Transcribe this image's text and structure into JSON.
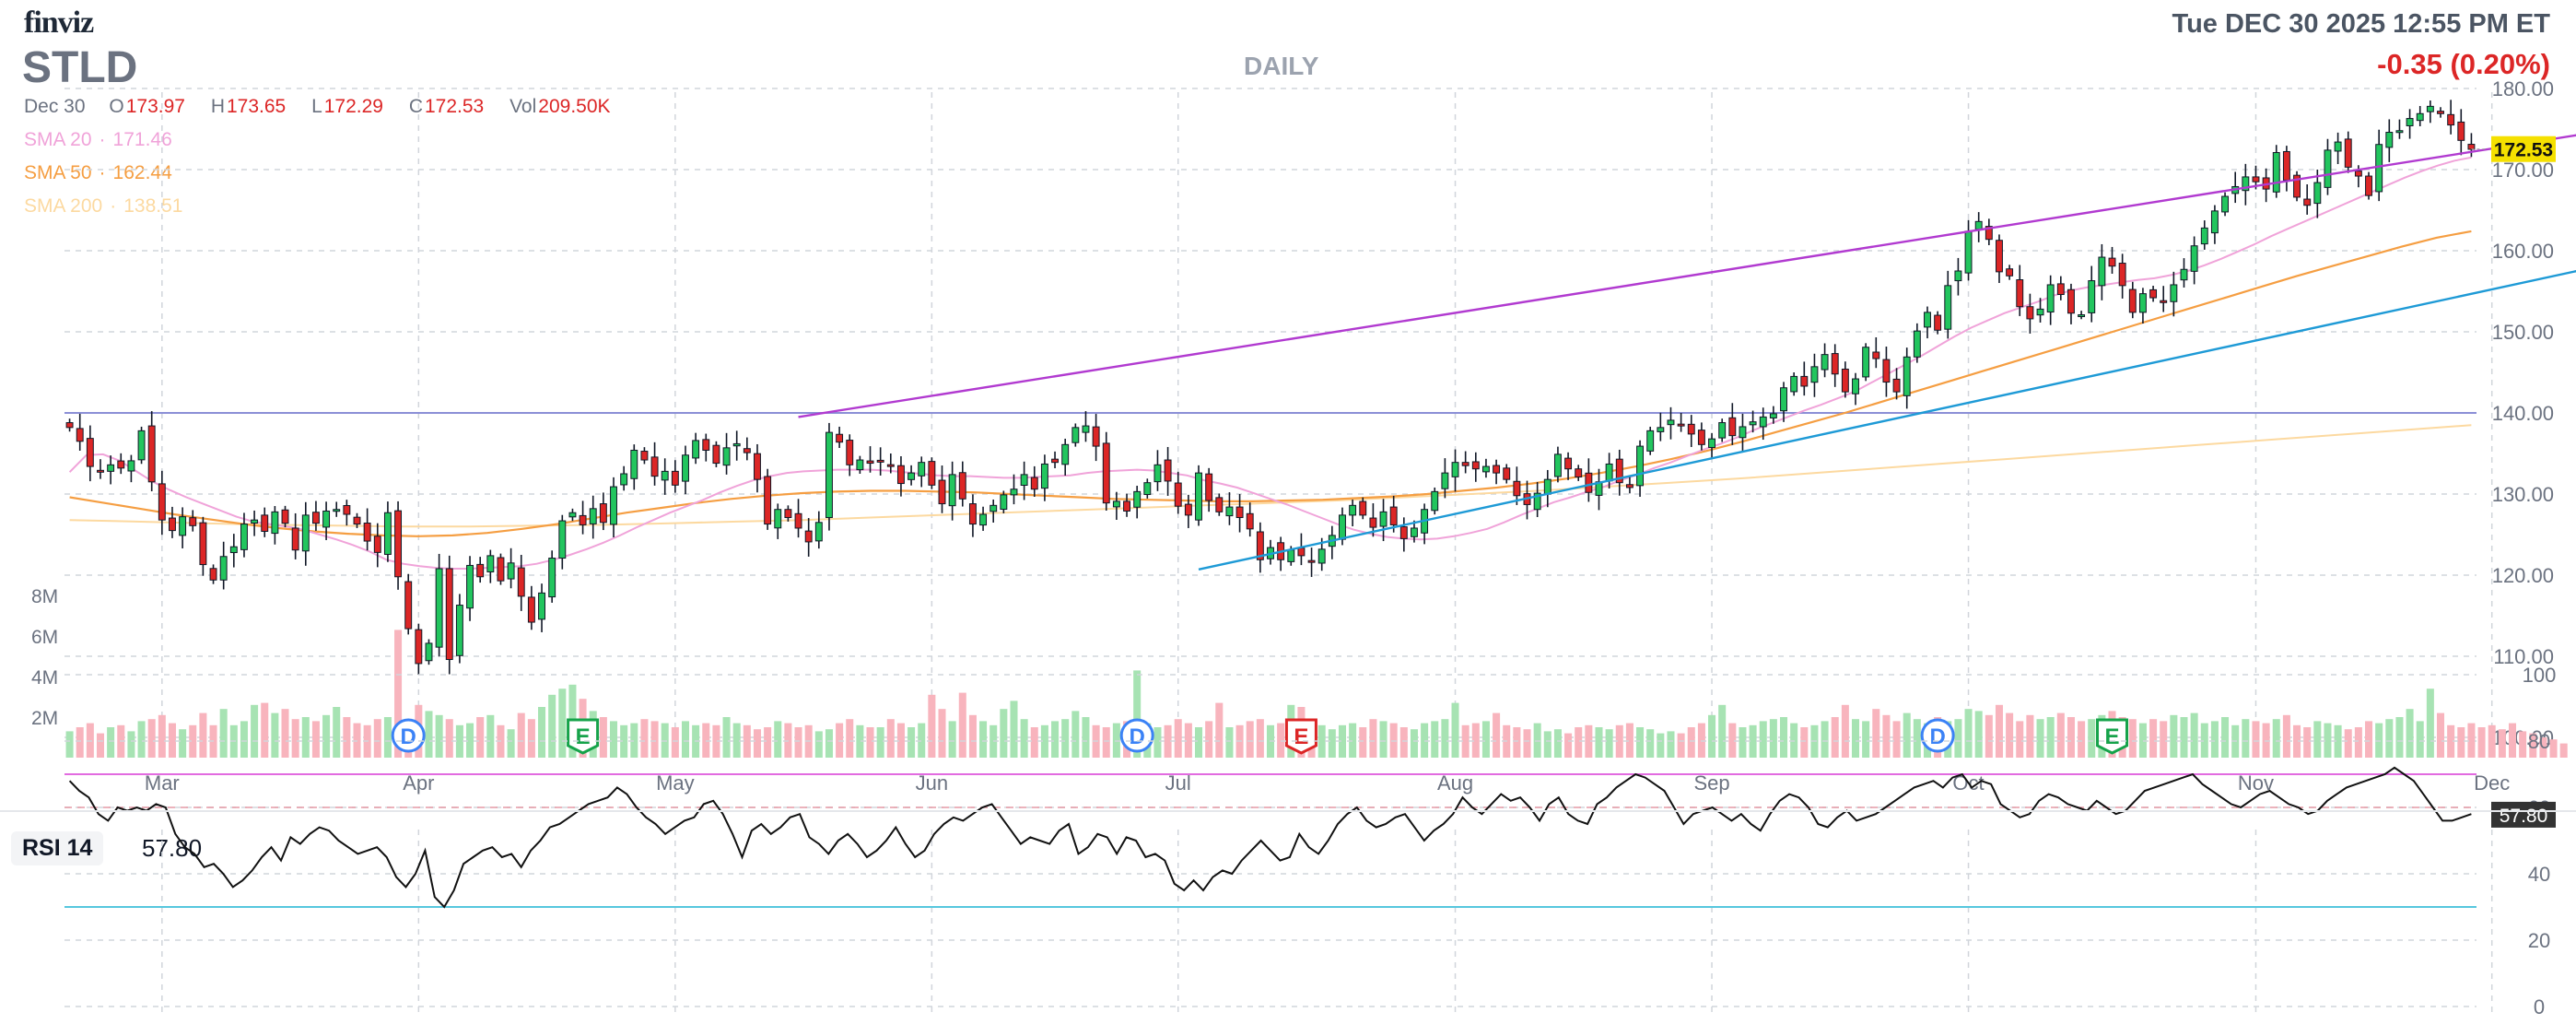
{
  "header": {
    "logo": "finviz",
    "ticker": "STLD",
    "datetime": "Tue DEC 30 2025 12:55 PM ET",
    "change": "-0.35 (0.20%)",
    "period": "DAILY",
    "ohlc": {
      "date": "Dec 30",
      "o_label": "O",
      "o": "173.97",
      "h_label": "H",
      "h": "173.65",
      "l_label": "L",
      "l": "172.29",
      "c_label": "C",
      "c": "172.53",
      "vol_label": "Vol",
      "vol": "209.50K"
    },
    "sma20": {
      "label": "SMA 20",
      "value": "171.46",
      "color": "#f0a3d9"
    },
    "sma50": {
      "label": "SMA 50",
      "value": "162.44",
      "color": "#f59e42"
    },
    "sma200": {
      "label": "SMA 200",
      "value": "138.51",
      "color": "#fcd9a0"
    }
  },
  "colors": {
    "up": "#22c55e",
    "down": "#dc2626",
    "wick": "#111827",
    "vol_up": "#a7e3b3",
    "vol_down": "#f8b4bd",
    "grid": "#d1d5db",
    "resistance": "#8b8fd6",
    "channel_top": "#b13ad0",
    "trend": "#1e9ad6",
    "rsi_line": "#111111",
    "rsi_upper": "#e26be0",
    "rsi_lower": "#57c7de",
    "rsi_mid": "#e59aa5",
    "price_badge": "#f5e000",
    "rsi_badge": "#333333"
  },
  "chart_data": [
    {
      "type": "candlestick",
      "ylim": [
        100,
        180
      ],
      "y_ticks": [
        "100.00",
        "110.00",
        "120.00",
        "130.00",
        "140.00",
        "150.00",
        "160.00",
        "170.00",
        "180.00"
      ],
      "x_ticks": [
        "Mar",
        "Apr",
        "May",
        "Jun",
        "Jul",
        "Aug",
        "Sep",
        "Oct",
        "Nov",
        "Dec"
      ],
      "last_price": "172.53",
      "resistance_level": 140,
      "closes": [
        138.2,
        136.5,
        133.4,
        132.8,
        133.6,
        133.2,
        134.1,
        137.8,
        131.5,
        126.8,
        125.5,
        127.2,
        126.1,
        121.3,
        119.4,
        122.3,
        123.5,
        126.3,
        126.8,
        125.4,
        127.8,
        126.4,
        123.1,
        127.4,
        126.4,
        127.9,
        128.1,
        127.5,
        126.3,
        124.2,
        122.8,
        127.7,
        119.8,
        113.4,
        109.1,
        111.6,
        120.8,
        109.6,
        116.3,
        121.2,
        119.8,
        122.4,
        119.3,
        121.5,
        117.4,
        114.2,
        117.8,
        122.1,
        126.7,
        127.7,
        126.2,
        128.2,
        126.5,
        130.9,
        132.5,
        135.4,
        134.2,
        132.2,
        132.8,
        131.1,
        134.8,
        136.6,
        135.4,
        133.8,
        135.7,
        136.2,
        135.1,
        131.8,
        126.3,
        128.1,
        127.1,
        125.8,
        124.1,
        126.5,
        137.6,
        136.4,
        133.6,
        134.2,
        133.8,
        134.1,
        133.5,
        131.3,
        132.6,
        133.9,
        131.1,
        128.8,
        132.4,
        129.4,
        126.3,
        127.5,
        128.6,
        129.9,
        130.6,
        132.4,
        130.6,
        133.7,
        133.9,
        136.1,
        138.2,
        138.4,
        135.9,
        128.9,
        129.1,
        127.9,
        130.3,
        131.4,
        133.6,
        131.6,
        128.5,
        127.4,
        132.6,
        129.2,
        127.8,
        128.4,
        127.1,
        125.7,
        121.9,
        123.4,
        121.9,
        123.1,
        122.4,
        121.6,
        123.2,
        124.9,
        127.4,
        128.6,
        127.4,
        125.9,
        127.8,
        126.2,
        124.5,
        125.8,
        128.1,
        130.3,
        132.6,
        133.9,
        133.5,
        133.1,
        133.4,
        132.6,
        131.8,
        129.8,
        128.7,
        130.1,
        131.8,
        134.9,
        133.1,
        132.1,
        130.2,
        131.5,
        133.7,
        131.4,
        130.8,
        135.9,
        137.8,
        138.2,
        139.1,
        138.6,
        137.4,
        136.1,
        136.8,
        138.8,
        137.2,
        138.3,
        138.9,
        139.5,
        139.9,
        143.1,
        144.5,
        143.3,
        145.7,
        147.2,
        144.8,
        142.6,
        144.2,
        148.1,
        146.7,
        143.8,
        142.6,
        146.9,
        150.1,
        152.4,
        150.2,
        155.7,
        157.5,
        162.4,
        163.6,
        161.4,
        157.4,
        156.9,
        153.1,
        151.6,
        152.8,
        155.8,
        154.6,
        152.3,
        152.1,
        156.3,
        159.2,
        158.1,
        155.7,
        152.4,
        154.7,
        154.2,
        153.6,
        155.8,
        157.7,
        160.6,
        162.8,
        164.9,
        166.7,
        167.9,
        169.1,
        168.5,
        167.6,
        172.1,
        168.7,
        166.6,
        165.6,
        168.4,
        172.4,
        173.4,
        170.3,
        169.2,
        166.8,
        173.1,
        174.6,
        174.8,
        176.3,
        176.9,
        177.8,
        176.9,
        175.5,
        173.6,
        172.5
      ],
      "series": [
        {
          "name": "SMA 20",
          "values": [
            132.7,
            134.8,
            134.9,
            134.1,
            132.8,
            131.5,
            130.5,
            129.6,
            128.8,
            128.0,
            127.2,
            126.6,
            126.3,
            126.0,
            125.6,
            125.0,
            124.4,
            123.7,
            122.9,
            121.9,
            121.4,
            121.1,
            120.9,
            120.8,
            120.8,
            120.9,
            121.0,
            121.1,
            121.4,
            121.9,
            122.5,
            123.2,
            124.0,
            124.9,
            125.9,
            126.8,
            127.7,
            128.5,
            129.3,
            130.2,
            131.0,
            131.7,
            132.2,
            132.6,
            132.8,
            132.9,
            133.0,
            133.0,
            133.0,
            132.9,
            132.7,
            132.5,
            132.3,
            132.2,
            132.2,
            132.1,
            132.0,
            132.0,
            132.1,
            132.2,
            132.3,
            132.6,
            132.8,
            132.9,
            133.0,
            132.9,
            132.6,
            132.3,
            131.7,
            131.3,
            130.8,
            130.1,
            129.4,
            128.7,
            127.9,
            127.1,
            126.3,
            125.6,
            125.1,
            124.7,
            124.5,
            124.4,
            124.5,
            124.8,
            125.2,
            125.7,
            126.5,
            127.4,
            128.2,
            129.0,
            129.6,
            130.3,
            130.9,
            131.7,
            132.4,
            133.2,
            133.9,
            134.7,
            135.5,
            136.2,
            137.0,
            137.9,
            138.7,
            139.5,
            140.3,
            141.0,
            141.8,
            142.6,
            143.7,
            144.8,
            145.9,
            147.0,
            148.2,
            149.4,
            150.5,
            151.4,
            152.3,
            153.0,
            153.7,
            154.5,
            155.1,
            155.5,
            155.8,
            156.1,
            156.4,
            156.6,
            157.0,
            157.5,
            158.2,
            159.0,
            159.9,
            160.8,
            161.8,
            162.7,
            163.6,
            164.5,
            165.4,
            166.3,
            167.2,
            168.1,
            169.0,
            169.8,
            170.5,
            171.1,
            171.5
          ]
        },
        {
          "name": "SMA 50",
          "values": [
            129.6,
            128.9,
            128.2,
            127.5,
            126.9,
            126.3,
            125.8,
            125.4,
            125.1,
            124.9,
            124.8,
            124.9,
            125.2,
            125.7,
            126.3,
            127.0,
            127.7,
            128.3,
            128.9,
            129.4,
            129.8,
            130.1,
            130.3,
            130.4,
            130.4,
            130.3,
            130.2,
            130.0,
            129.8,
            129.6,
            129.4,
            129.3,
            129.2,
            129.1,
            129.1,
            129.2,
            129.3,
            129.5,
            129.7,
            130.0,
            130.4,
            130.8,
            131.3,
            131.9,
            132.6,
            133.4,
            134.3,
            135.3,
            136.4,
            137.6,
            138.8,
            140.0,
            141.3,
            142.6,
            143.9,
            145.2,
            146.5,
            147.8,
            149.1,
            150.4,
            151.7,
            153.0,
            154.3,
            155.6,
            156.9,
            158.1,
            159.3,
            160.5,
            161.6,
            162.4
          ]
        },
        {
          "name": "SMA 200",
          "values": [
            126.8,
            126.6,
            126.4,
            126.2,
            126.1,
            126.0,
            126.0,
            126.1,
            126.2,
            126.4,
            126.6,
            126.8,
            127.1,
            127.4,
            127.7,
            128.0,
            128.3,
            128.6,
            128.9,
            129.2,
            129.6,
            130.0,
            130.4,
            130.9,
            131.4,
            131.9,
            132.5,
            133.1,
            133.7,
            134.3,
            134.9,
            135.5,
            136.1,
            136.7,
            137.3,
            137.9,
            138.5
          ]
        }
      ],
      "trendlines": [
        {
          "name": "channel",
          "points": [
            [
              71,
              139.5
            ],
            [
              258,
              177.0
            ]
          ]
        },
        {
          "name": "trend",
          "points": [
            [
              110,
              120.7
            ],
            [
              268,
              164.0
            ]
          ]
        }
      ]
    },
    {
      "type": "bar",
      "name": "Volume",
      "ylim": [
        0,
        10
      ],
      "y_ticks": [
        "2M",
        "4M",
        "6M",
        "8M"
      ],
      "values": [
        1.3,
        1.5,
        1.7,
        1.2,
        1.5,
        1.6,
        1.3,
        1.8,
        1.9,
        2.1,
        1.7,
        1.4,
        1.6,
        2.2,
        1.6,
        2.4,
        1.6,
        1.8,
        2.6,
        2.7,
        2.2,
        2.4,
        1.9,
        2.0,
        1.8,
        2.1,
        2.5,
        2.0,
        1.7,
        1.6,
        1.9,
        2.0,
        6.3,
        1.9,
        2.6,
        2.3,
        2.1,
        1.9,
        1.6,
        1.7,
        2.0,
        2.1,
        1.6,
        1.4,
        2.2,
        1.9,
        2.5,
        3.1,
        3.4,
        3.6,
        2.9,
        2.3,
        2.0,
        1.8,
        1.6,
        1.7,
        1.9,
        1.8,
        1.7,
        1.5,
        1.8,
        1.6,
        1.7,
        1.6,
        2.0,
        1.7,
        1.6,
        1.4,
        1.5,
        1.8,
        1.7,
        1.5,
        1.6,
        1.3,
        1.4,
        1.7,
        1.9,
        1.6,
        1.5,
        1.5,
        1.9,
        1.7,
        1.5,
        1.7,
        3.1,
        2.4,
        1.8,
        3.2,
        2.1,
        1.8,
        1.6,
        2.4,
        2.8,
        1.9,
        1.5,
        1.6,
        1.8,
        1.9,
        2.3,
        2.0,
        1.6,
        1.5,
        1.7,
        1.8,
        4.3,
        1.7,
        1.5,
        1.6,
        1.9,
        1.7,
        1.5,
        1.8,
        2.7,
        1.5,
        1.6,
        1.8,
        1.9,
        1.6,
        1.7,
        2.6,
        2.5,
        1.9,
        1.6,
        1.4,
        1.6,
        1.7,
        1.5,
        1.9,
        1.8,
        1.7,
        1.5,
        1.4,
        1.7,
        1.8,
        1.9,
        2.7,
        1.6,
        1.7,
        1.8,
        2.2,
        1.6,
        1.5,
        1.4,
        1.7,
        1.3,
        1.4,
        1.2,
        1.5,
        1.6,
        1.5,
        1.4,
        1.6,
        1.7,
        1.5,
        1.4,
        1.2,
        1.3,
        1.2,
        1.5,
        1.7,
        2.1,
        2.6,
        1.7,
        1.5,
        1.6,
        1.8,
        1.9,
        2.0,
        1.7,
        1.5,
        1.6,
        1.8,
        2.0,
        2.6,
        1.9,
        1.8,
        2.4,
        2.1,
        1.8,
        2.2,
        1.9,
        1.7,
        2.0,
        1.8,
        1.9,
        2.4,
        2.3,
        2.1,
        2.6,
        2.2,
        1.8,
        2.1,
        1.9,
        2.0,
        2.2,
        2.0,
        1.8,
        1.9,
        2.1,
        2.3,
        2.0,
        1.9,
        1.7,
        1.9,
        1.8,
        2.1,
        2.0,
        2.2,
        1.7,
        1.8,
        2.0,
        1.6,
        1.9,
        1.8,
        1.7,
        1.9,
        2.1,
        1.6,
        1.5,
        1.8,
        1.7,
        1.6,
        1.4,
        1.5,
        1.8,
        1.7,
        1.9,
        2.0,
        2.4,
        1.8,
        3.4,
        2.2,
        1.6,
        1.5,
        1.7,
        1.5,
        1.6,
        1.4,
        1.7,
        1.3,
        1.2,
        1.0,
        0.9,
        0.7
      ],
      "events": [
        {
          "label": "D",
          "x_index": 33,
          "kind": "dividend"
        },
        {
          "label": "E",
          "x_index": 50,
          "kind": "earnings"
        },
        {
          "label": "D",
          "x_index": 104,
          "kind": "dividend"
        },
        {
          "label": "E",
          "x_index": 120,
          "kind": "earnings-red"
        },
        {
          "label": "D",
          "x_index": 182,
          "kind": "dividend"
        },
        {
          "label": "E",
          "x_index": 199,
          "kind": "earnings"
        }
      ]
    },
    {
      "type": "line",
      "name": "RSI 14",
      "label": "RSI 14",
      "value": "57.80",
      "ylim": [
        0,
        100
      ],
      "y_ticks": [
        "0",
        "20",
        "40",
        "60",
        "80",
        "100"
      ],
      "levels": [
        70,
        30
      ],
      "values": [
        68,
        65,
        63,
        58,
        56,
        60,
        59,
        60,
        59,
        61,
        60,
        52,
        48,
        46,
        42,
        43,
        40,
        36,
        38,
        41,
        45,
        48,
        44,
        51,
        49,
        52,
        54,
        53,
        50,
        48,
        46,
        47,
        48,
        45,
        39,
        36,
        40,
        47,
        33,
        30,
        35,
        43,
        45,
        47,
        48,
        45,
        46,
        42,
        47,
        50,
        54,
        55,
        57,
        59,
        61,
        62,
        63,
        66,
        64,
        60,
        57,
        55,
        52,
        54,
        56,
        57,
        61,
        62,
        58,
        52,
        45,
        53,
        55,
        52,
        54,
        57,
        58,
        51,
        49,
        46,
        50,
        52,
        49,
        45,
        47,
        50,
        54,
        49,
        45,
        47,
        52,
        55,
        57,
        56,
        58,
        60,
        61,
        57,
        53,
        49,
        51,
        50,
        49,
        53,
        55,
        46,
        48,
        52,
        51,
        46,
        51,
        50,
        45,
        46,
        44,
        37,
        35,
        38,
        35,
        39,
        41,
        40,
        44,
        47,
        50,
        47,
        44,
        45,
        52,
        48,
        46,
        50,
        55,
        58,
        60,
        56,
        54,
        55,
        57,
        58,
        54,
        50,
        53,
        55,
        58,
        63,
        60,
        58,
        61,
        64,
        62,
        63,
        60,
        56,
        61,
        63,
        58,
        56,
        55,
        61,
        63,
        66,
        68,
        70,
        69,
        67,
        65,
        60,
        55,
        58,
        59,
        60,
        58,
        56,
        58,
        55,
        53,
        58,
        62,
        64,
        63,
        60,
        55,
        54,
        57,
        59,
        56,
        57,
        58,
        60,
        62,
        64,
        66,
        67,
        68,
        66,
        69,
        70,
        66,
        68,
        67,
        61,
        59,
        57,
        58,
        62,
        64,
        63,
        61,
        60,
        59,
        62,
        60,
        58,
        59,
        62,
        65,
        66,
        67,
        68,
        69,
        70,
        67,
        65,
        63,
        61,
        60,
        62,
        64,
        65,
        63,
        61,
        60,
        58,
        59,
        62,
        64,
        66,
        67,
        68,
        69,
        70,
        72,
        70,
        68,
        64,
        60,
        56,
        56,
        57,
        58
      ]
    }
  ]
}
